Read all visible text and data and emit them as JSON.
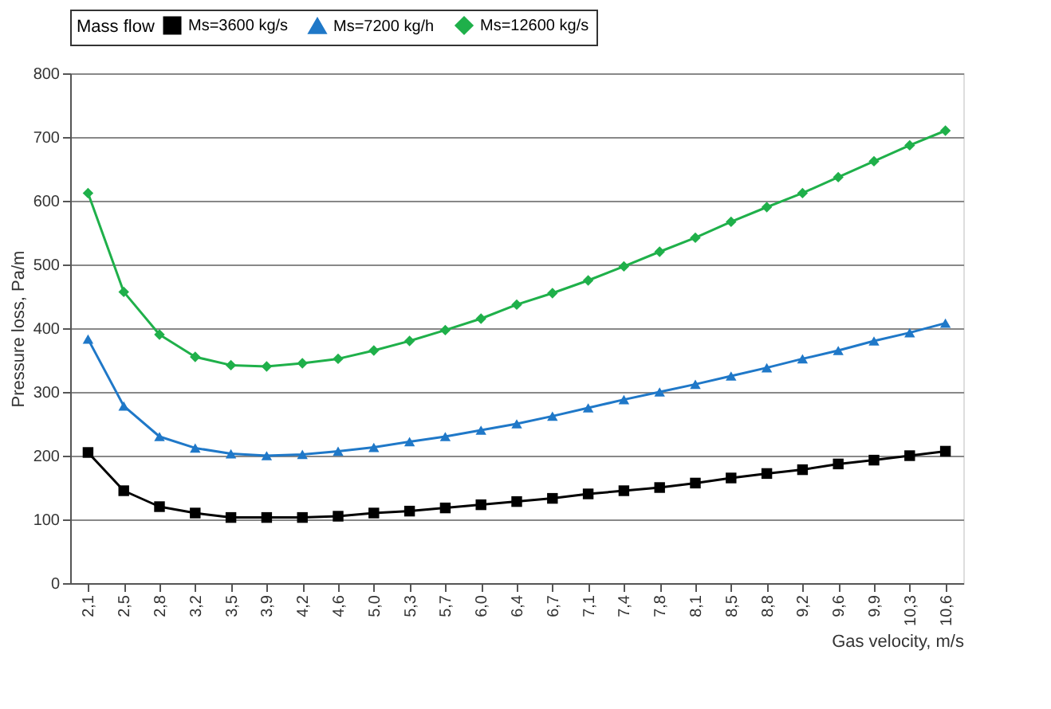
{
  "chart_data": {
    "type": "line",
    "xlabel": "Gas velocity, m/s",
    "ylabel": "Pressure loss, Pa/m",
    "legend_title": "Mass flow",
    "legend": "top",
    "grid": "y",
    "ylim": [
      0,
      800
    ],
    "yticks": [
      0,
      100,
      200,
      300,
      400,
      500,
      600,
      700,
      800
    ],
    "categories": [
      "2,1",
      "2,5",
      "2,8",
      "3,2",
      "3,5",
      "3,9",
      "4,2",
      "4,6",
      "5,0",
      "5,3",
      "5,7",
      "6,0",
      "6,4",
      "6,7",
      "7,1",
      "7,4",
      "7,8",
      "8,1",
      "8,5",
      "8,8",
      "9,2",
      "9,6",
      "9,9",
      "10,3",
      "10,6"
    ],
    "series": [
      {
        "name": "Ms=3600 kg/s",
        "color": "#000000",
        "marker": "square",
        "values": [
          205,
          145,
          120,
          110,
          103,
          103,
          103,
          105,
          110,
          113,
          118,
          123,
          128,
          133,
          140,
          145,
          150,
          157,
          165,
          172,
          178,
          187,
          193,
          200,
          207
        ]
      },
      {
        "name": "Ms=7200 kg/h",
        "color": "#1f78c8",
        "marker": "triangle",
        "values": [
          383,
          278,
          230,
          212,
          203,
          200,
          202,
          207,
          213,
          222,
          230,
          240,
          250,
          262,
          275,
          288,
          300,
          312,
          325,
          338,
          352,
          365,
          380,
          393,
          408
        ]
      },
      {
        "name": "Ms=12600 kg/s",
        "color": "#1fb04a",
        "marker": "diamond",
        "values": [
          612,
          457,
          390,
          355,
          342,
          340,
          345,
          352,
          365,
          380,
          397,
          415,
          437,
          455,
          475,
          497,
          520,
          542,
          567,
          590,
          612,
          637,
          662,
          687,
          710
        ]
      }
    ]
  }
}
